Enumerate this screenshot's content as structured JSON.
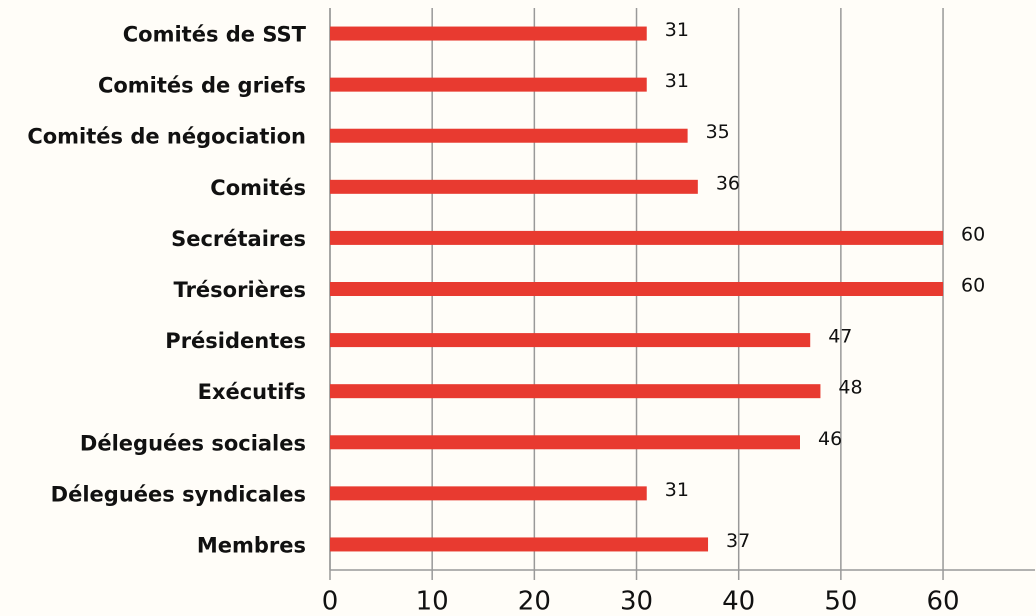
{
  "chart_data": {
    "type": "bar",
    "orientation": "horizontal",
    "categories": [
      "Comités de SST",
      "Comités de griefs",
      "Comités de négociation",
      "Comités",
      "Secrétaires",
      "Trésorières",
      "Présidentes",
      "Exécutifs",
      "Déleguées sociales",
      "Déleguées syndicales",
      "Membres"
    ],
    "values": [
      31,
      31,
      35,
      36,
      60,
      60,
      47,
      48,
      46,
      31,
      37
    ],
    "color": "#e83a30",
    "xlim": [
      0,
      69
    ],
    "xticks": [
      0,
      10,
      20,
      30,
      40,
      50,
      60
    ],
    "grid": true
  }
}
